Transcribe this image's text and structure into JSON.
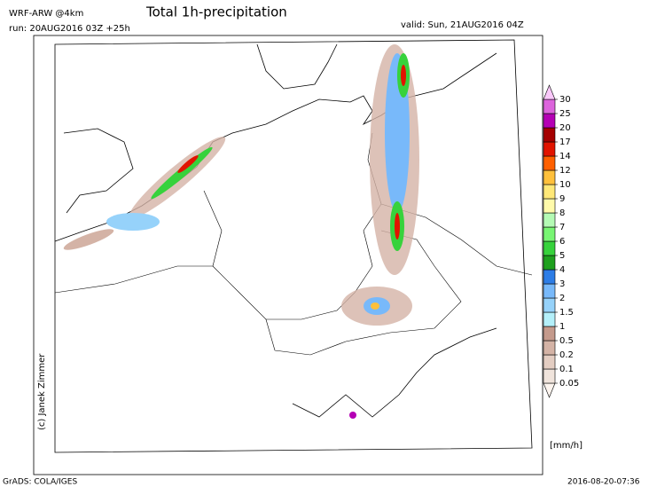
{
  "header": {
    "model": "WRF-ARW @4km",
    "title": "Total 1h-precipitation",
    "run": "run: 20AUG2016 03Z +25h",
    "valid": "valid: Sun, 21AUG2016 04Z"
  },
  "credit": "(c) Janek Zimmer",
  "legend": {
    "unit": "[mm/h]",
    "levels": [
      0.05,
      0.1,
      0.2,
      0.5,
      1,
      1.5,
      2,
      3,
      4,
      5,
      6,
      7,
      8,
      9,
      10,
      12,
      14,
      17,
      20,
      25,
      30
    ],
    "colors": [
      "#fdf5ef",
      "#f0e4dc",
      "#e3cdc2",
      "#d4b3a6",
      "#c49a8c",
      "#b4f0fa",
      "#96d2fa",
      "#78b9fa",
      "#2d7de6",
      "#1ea01e",
      "#37d23c",
      "#78f573",
      "#b4fab4",
      "#fffaaa",
      "#ffe878",
      "#ffc03c",
      "#ff6000",
      "#e11400",
      "#a50000",
      "#b400b4",
      "#dc64dc",
      "#fac8fa"
    ]
  },
  "footer": {
    "software": "GrADS: COLA/IGES",
    "timestamp": "2016-08-20-07:36"
  }
}
